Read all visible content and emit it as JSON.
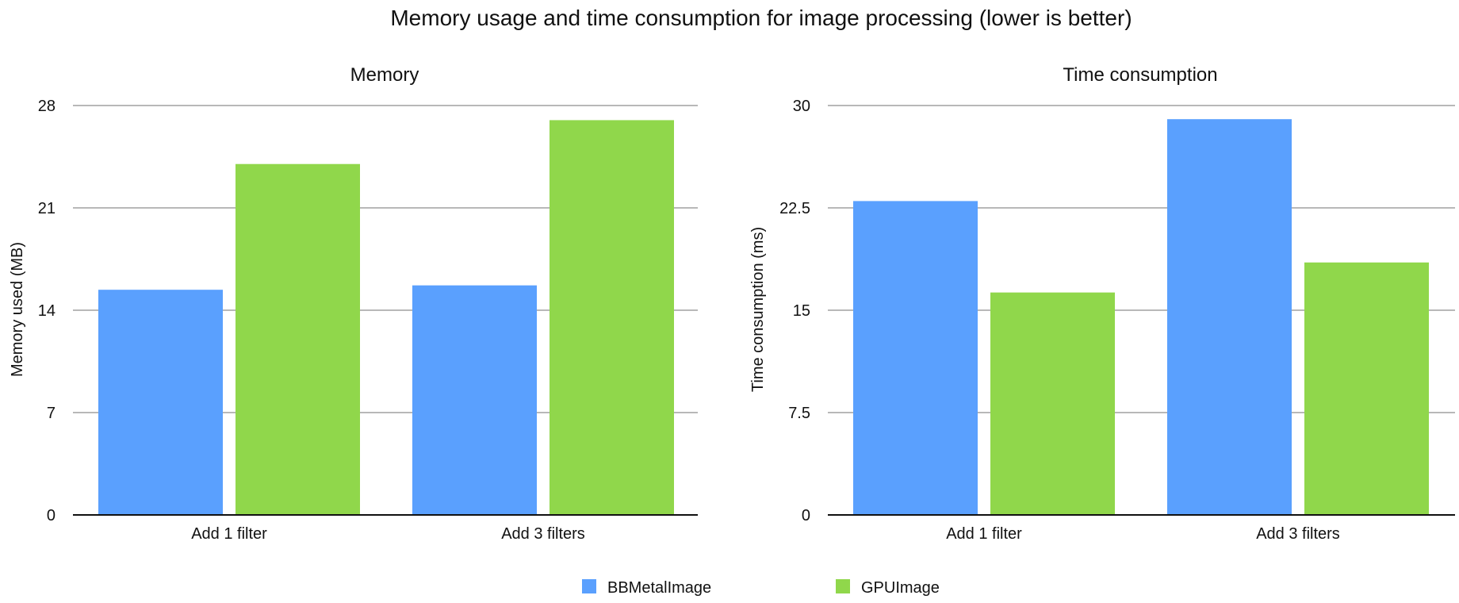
{
  "title": "Memory usage and time consumption for image processing (lower is better)",
  "legend": [
    {
      "name": "BBMetalImage",
      "color": "#5aa0fe"
    },
    {
      "name": "GPUImage",
      "color": "#90d74b"
    }
  ],
  "chart_data": [
    {
      "type": "bar",
      "title": "Memory",
      "xlabel": "",
      "ylabel": "Memory used (MB)",
      "categories": [
        "Add 1 filter",
        "Add 3 filters"
      ],
      "ylim": [
        0,
        28
      ],
      "yticks": [
        "0",
        "7",
        "14",
        "21",
        "28"
      ],
      "grid": true,
      "series": [
        {
          "name": "BBMetalImage",
          "color": "#5aa0fe",
          "values": [
            15.4,
            15.7
          ]
        },
        {
          "name": "GPUImage",
          "color": "#90d74b",
          "values": [
            24.0,
            27.0
          ]
        }
      ]
    },
    {
      "type": "bar",
      "title": "Time consumption",
      "xlabel": "",
      "ylabel": "Time consumption (ms)",
      "categories": [
        "Add 1 filter",
        "Add 3 filters"
      ],
      "ylim": [
        0,
        30
      ],
      "yticks": [
        "0",
        "7.5",
        "15",
        "22.5",
        "30"
      ],
      "grid": true,
      "series": [
        {
          "name": "BBMetalImage",
          "color": "#5aa0fe",
          "values": [
            23.0,
            29.0
          ]
        },
        {
          "name": "GPUImage",
          "color": "#90d74b",
          "values": [
            16.3,
            18.5
          ]
        }
      ]
    }
  ]
}
